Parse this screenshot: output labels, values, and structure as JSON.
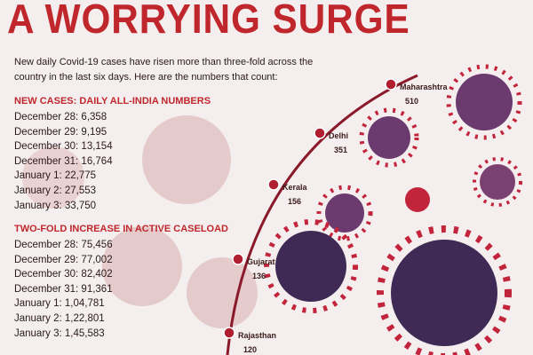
{
  "header": {
    "title": "A WORRYING SURGE",
    "intro": [
      "New daily Covid-19 cases have risen more than three-fold across the",
      "country in the last six days. Here are the numbers that count:"
    ]
  },
  "sections": [
    {
      "heading": "NEW CASES: DAILY ALL-INDIA NUMBERS",
      "items": [
        "December 28: 6,358",
        "December 29: 9,195",
        "December 30: 13,154",
        "December 31: 16,764",
        "January 1: 22,775",
        "January 2: 27,553",
        "January 3: 33,750"
      ]
    },
    {
      "heading": "TWO-FOLD INCREASE IN ACTIVE CASELOAD",
      "items": [
        "December 28: 75,456",
        "December 29: 77,002",
        "December 30: 82,402",
        "December 31: 91,361",
        "January 1: 1,04,781",
        "January 2: 1,22,801",
        "January 3: 1,45,583"
      ]
    }
  ],
  "states": [
    {
      "label": "Maharashtra",
      "value": 510
    },
    {
      "label": "Delhi",
      "value": 351
    },
    {
      "label": "Kerala",
      "value": 156
    },
    {
      "label": "Gujarat",
      "value": 136
    },
    {
      "label": "Rajasthan",
      "value": 120
    }
  ]
}
